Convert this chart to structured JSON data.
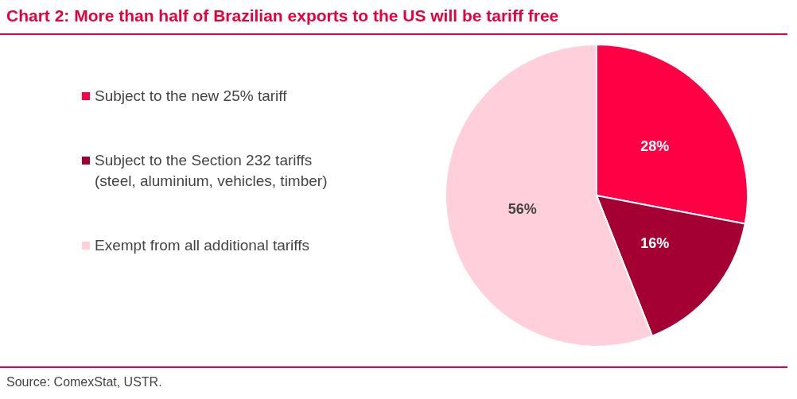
{
  "chart_data": {
    "type": "pie",
    "title": "Chart 2: More than half of Brazilian exports to the US will be tariff free",
    "categories": [
      "Subject to the new 25% tariff",
      "Subject to the Section 232 tariffs (steel, aluminium, vehicles, timber)",
      "Exempt from all additional tariffs"
    ],
    "values": [
      28,
      16,
      56
    ],
    "colors": [
      "#ff0044",
      "#a50034",
      "#ffd0dc"
    ],
    "value_labels": [
      "28%",
      "16%",
      "56%"
    ],
    "legend": "left",
    "annotations": [
      "Source: ComexStat, USTR."
    ]
  }
}
